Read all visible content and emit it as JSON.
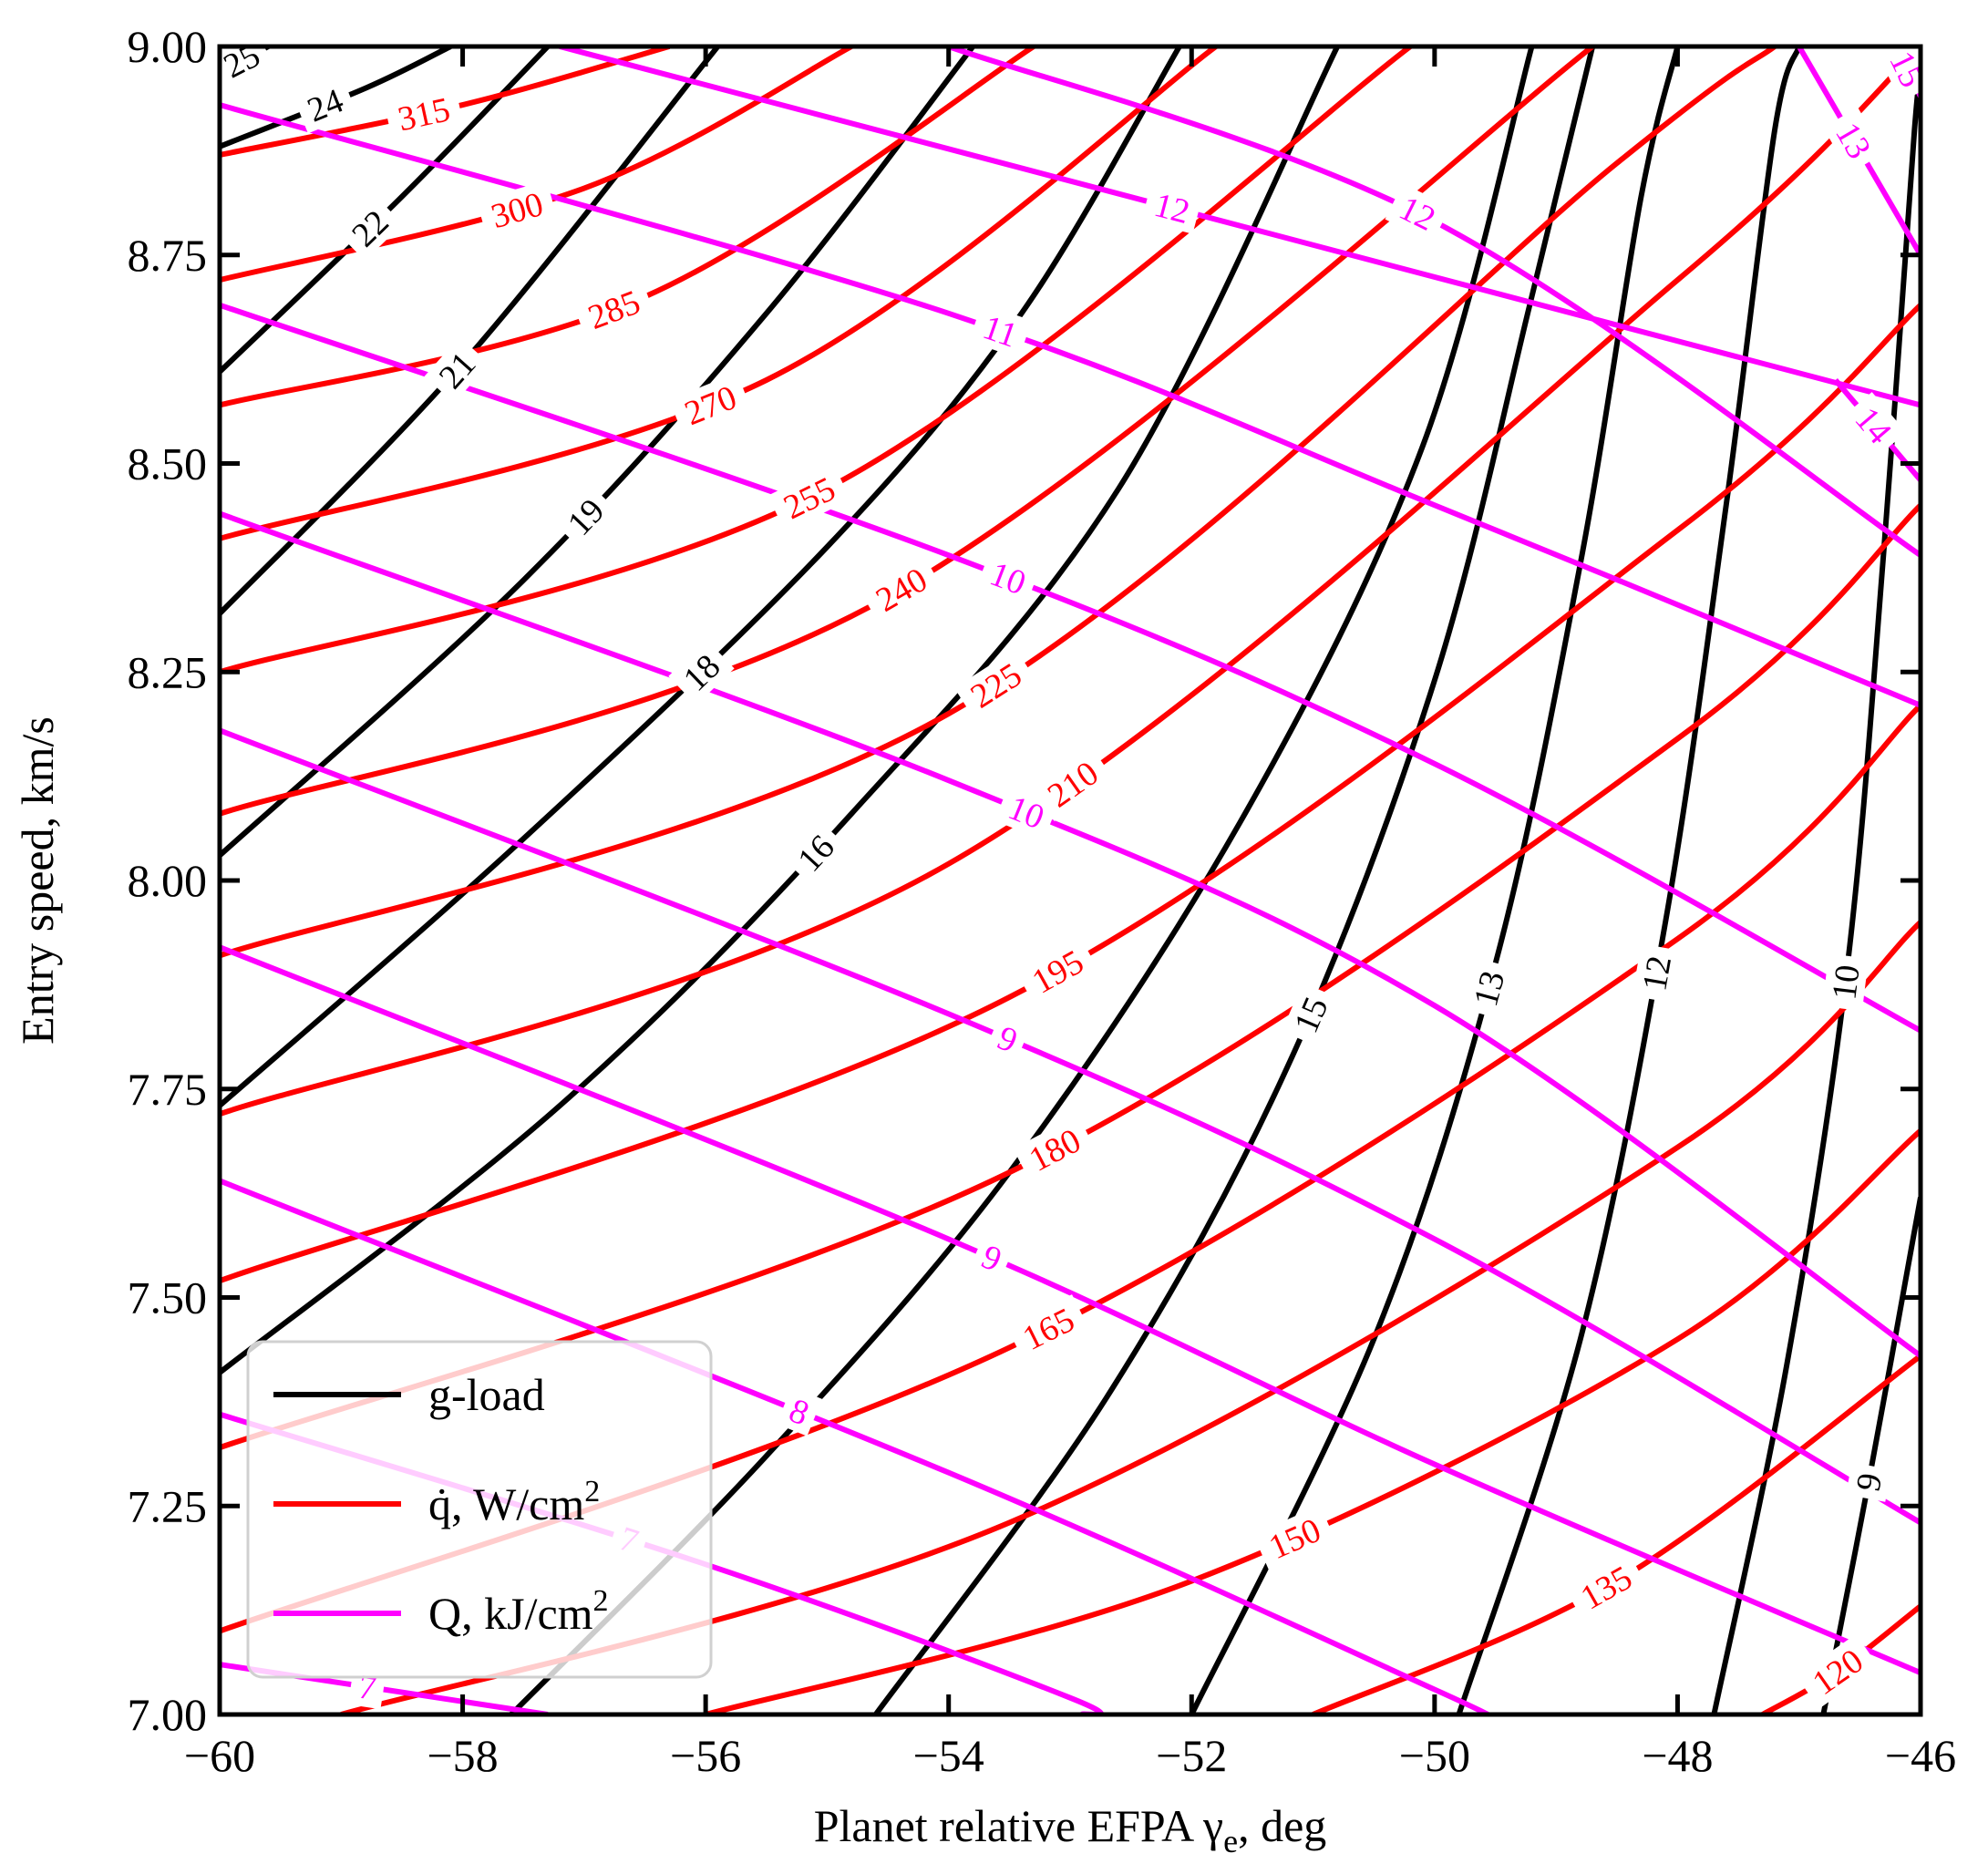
{
  "chart_data": {
    "type": "contour",
    "xlabel": "Planet relative EFPA γ",
    "xlabel_sub": "e",
    "xlabel_tail": ", deg",
    "ylabel": "Entry speed, km/s",
    "xlim": [
      -60,
      -46
    ],
    "ylim": [
      7.0,
      9.0
    ],
    "x_ticks": [
      -60,
      -58,
      -56,
      -54,
      -52,
      -50,
      -48,
      -46
    ],
    "x_tick_labels": [
      "−60",
      "−58",
      "−56",
      "−54",
      "−52",
      "−50",
      "−48",
      "−46"
    ],
    "y_ticks": [
      7.0,
      7.25,
      7.5,
      7.75,
      8.0,
      8.25,
      8.5,
      8.75,
      9.0
    ],
    "y_tick_labels": [
      "7.00",
      "7.25",
      "7.50",
      "7.75",
      "8.00",
      "8.25",
      "8.50",
      "8.75",
      "9.00"
    ],
    "grid": false,
    "legend_position": "lower-left",
    "series": [
      {
        "name": "g-load",
        "color": "#000000",
        "contours": [
          {
            "label": "25",
            "points": [
              [
                -60,
                8.97
              ],
              [
                -59.6,
                9.0
              ]
            ]
          },
          {
            "label": "24",
            "points": [
              [
                -60,
                8.88
              ],
              [
                -58.8,
                8.95
              ],
              [
                -58.1,
                9.0
              ]
            ]
          },
          {
            "label": "22",
            "points": [
              [
                -60,
                8.61
              ],
              [
                -58.5,
                8.82
              ],
              [
                -57.3,
                9.0
              ]
            ]
          },
          {
            "label": "21",
            "points": [
              [
                -60,
                8.32
              ],
              [
                -58,
                8.62
              ],
              [
                -55.9,
                9.0
              ]
            ]
          },
          {
            "label": "19",
            "points": [
              [
                -60,
                8.03
              ],
              [
                -57.5,
                8.36
              ],
              [
                -55.5,
                8.68
              ],
              [
                -53.8,
                9.0
              ]
            ]
          },
          {
            "label": "18",
            "points": [
              [
                -60,
                7.73
              ],
              [
                -57.5,
                8.05
              ],
              [
                -55,
                8.4
              ],
              [
                -53.4,
                8.68
              ],
              [
                -52.1,
                9.0
              ]
            ]
          },
          {
            "label": "16",
            "points": [
              [
                -60,
                7.41
              ],
              [
                -57.2,
                7.73
              ],
              [
                -54.8,
                8.08
              ],
              [
                -52.6,
                8.47
              ],
              [
                -50.8,
                9.0
              ]
            ]
          },
          {
            "label": "",
            "points": [
              [
                -57.6,
                7.0
              ],
              [
                -55.5,
                7.31
              ],
              [
                -53.5,
                7.65
              ],
              [
                -51.6,
                8.07
              ],
              [
                -50.1,
                8.52
              ],
              [
                -49.2,
                9.0
              ]
            ]
          },
          {
            "label": "15",
            "points": [
              [
                -54.6,
                7.0
              ],
              [
                -52.7,
                7.38
              ],
              [
                -51.2,
                7.78
              ],
              [
                -50,
                8.24
              ],
              [
                -49.2,
                8.7
              ],
              [
                -48.7,
                9.0
              ]
            ]
          },
          {
            "label": "13",
            "points": [
              [
                -52.0,
                7.0
              ],
              [
                -50.5,
                7.45
              ],
              [
                -49.5,
                7.9
              ],
              [
                -48.8,
                8.38
              ],
              [
                -48.3,
                8.82
              ],
              [
                -48.0,
                9.0
              ]
            ]
          },
          {
            "label": "12",
            "points": [
              [
                -49.8,
                7.0
              ],
              [
                -48.8,
                7.45
              ],
              [
                -48.1,
                7.95
              ],
              [
                -47.6,
                8.45
              ],
              [
                -47.2,
                8.9
              ],
              [
                -47.0,
                9.0
              ]
            ]
          },
          {
            "label": "10",
            "points": [
              [
                -47.7,
                7.0
              ],
              [
                -47.1,
                7.42
              ],
              [
                -46.6,
                7.9
              ],
              [
                -46.3,
                8.4
              ],
              [
                -46.05,
                8.9
              ],
              [
                -46.0,
                8.95
              ]
            ]
          },
          {
            "label": "9",
            "points": [
              [
                -46.8,
                7.0
              ],
              [
                -46.4,
                7.3
              ],
              [
                -46.0,
                7.62
              ]
            ]
          }
        ]
      },
      {
        "name": "q̇, W/cm",
        "name_sup": "2",
        "color": "#ff0000",
        "contours": [
          {
            "label": "315",
            "points": [
              [
                -60,
                8.87
              ],
              [
                -58,
                8.93
              ],
              [
                -56.3,
                9.0
              ]
            ]
          },
          {
            "label": "300",
            "points": [
              [
                -60,
                8.72
              ],
              [
                -57,
                8.83
              ],
              [
                -54.8,
                9.0
              ]
            ]
          },
          {
            "label": "285",
            "points": [
              [
                -60,
                8.57
              ],
              [
                -56.5,
                8.7
              ],
              [
                -53.3,
                9.0
              ]
            ]
          },
          {
            "label": "270",
            "points": [
              [
                -60,
                8.41
              ],
              [
                -55.5,
                8.6
              ],
              [
                -51.8,
                9.0
              ]
            ]
          },
          {
            "label": "255",
            "points": [
              [
                -60,
                8.25
              ],
              [
                -55,
                8.47
              ],
              [
                -50.2,
                9.0
              ]
            ]
          },
          {
            "label": "240",
            "points": [
              [
                -60,
                8.08
              ],
              [
                -54.5,
                8.34
              ],
              [
                -48.7,
                9.0
              ]
            ]
          },
          {
            "label": "225",
            "points": [
              [
                -60,
                7.91
              ],
              [
                -54,
                8.2
              ],
              [
                -48.5,
                8.86
              ],
              [
                -47.2,
                9.0
              ]
            ]
          },
          {
            "label": "210",
            "points": [
              [
                -60,
                7.72
              ],
              [
                -54,
                8.02
              ],
              [
                -48,
                8.72
              ],
              [
                -46,
                9.0
              ]
            ]
          },
          {
            "label": "195",
            "points": [
              [
                -60,
                7.52
              ],
              [
                -53.5,
                7.86
              ],
              [
                -48,
                8.42
              ],
              [
                -46,
                8.69
              ]
            ]
          },
          {
            "label": "180",
            "points": [
              [
                -60,
                7.32
              ],
              [
                -53.5,
                7.65
              ],
              [
                -48,
                8.17
              ],
              [
                -46,
                8.45
              ]
            ]
          },
          {
            "label": "165",
            "points": [
              [
                -60,
                7.1
              ],
              [
                -53.5,
                7.44
              ],
              [
                -48,
                7.93
              ],
              [
                -46,
                8.21
              ]
            ]
          },
          {
            "label": "",
            "points": [
              [
                -59,
                7.0
              ],
              [
                -53.5,
                7.23
              ],
              [
                -48,
                7.68
              ],
              [
                -46,
                7.95
              ]
            ]
          },
          {
            "label": "150",
            "points": [
              [
                -56.0,
                7.0
              ],
              [
                -52,
                7.16
              ],
              [
                -48,
                7.45
              ],
              [
                -46,
                7.7
              ]
            ]
          },
          {
            "label": "135",
            "points": [
              [
                -51.0,
                7.0
              ],
              [
                -48.5,
                7.16
              ],
              [
                -46,
                7.43
              ]
            ]
          },
          {
            "label": "120",
            "points": [
              [
                -47.3,
                7.0
              ],
              [
                -46.7,
                7.05
              ],
              [
                -46,
                7.13
              ]
            ]
          }
        ]
      },
      {
        "name": "Q, kJ/cm",
        "name_sup": "2",
        "color": "#ff00ff",
        "contours": [
          {
            "label": "12",
            "points": [
              [
                -57.2,
                9.0
              ],
              [
                -46,
                8.57
              ]
            ]
          },
          {
            "label": "12",
            "points": [
              [
                -54,
                9.0
              ],
              [
                -50,
                8.79
              ],
              [
                -46,
                8.39
              ]
            ]
          },
          {
            "label": "11",
            "points": [
              [
                -60,
                8.93
              ],
              [
                -54,
                8.68
              ],
              [
                -50,
                8.45
              ],
              [
                -46,
                8.21
              ]
            ]
          },
          {
            "label": "10",
            "points": [
              [
                -60,
                8.69
              ],
              [
                -54,
                8.39
              ],
              [
                -50,
                8.14
              ],
              [
                -46,
                7.82
              ]
            ]
          },
          {
            "label": "10",
            "points": [
              [
                -60,
                8.44
              ],
              [
                -54,
                8.12
              ],
              [
                -50,
                7.85
              ],
              [
                -46,
                7.43
              ]
            ]
          },
          {
            "label": "9",
            "points": [
              [
                -60,
                8.18
              ],
              [
                -54,
                7.84
              ],
              [
                -50,
                7.57
              ],
              [
                -46,
                7.23
              ]
            ]
          },
          {
            "label": "9",
            "points": [
              [
                -60,
                7.92
              ],
              [
                -54,
                7.57
              ],
              [
                -50,
                7.3
              ],
              [
                -46,
                7.05
              ]
            ]
          },
          {
            "label": "8",
            "points": [
              [
                -60,
                7.64
              ],
              [
                -54,
                7.29
              ],
              [
                -50,
                7.03
              ],
              [
                -49.6,
                7.0
              ]
            ]
          },
          {
            "label": "7",
            "points": [
              [
                -60,
                7.36
              ],
              [
                -56,
                7.18
              ],
              [
                -53,
                7.02
              ],
              [
                -52.9,
                7.0
              ]
            ]
          },
          {
            "label": "7",
            "points": [
              [
                -60,
                7.06
              ],
              [
                -57.3,
                7.0
              ]
            ]
          },
          {
            "label": "13",
            "points": [
              [
                -47.0,
                9.0
              ],
              [
                -46.0,
                8.75
              ]
            ]
          },
          {
            "label": "14",
            "points": [
              [
                -46.7,
                8.6
              ],
              [
                -46.0,
                8.48
              ]
            ]
          },
          {
            "label": "15",
            "points": [
              [
                -46.2,
                9.0
              ],
              [
                -46.0,
                8.94
              ]
            ]
          }
        ]
      }
    ]
  }
}
